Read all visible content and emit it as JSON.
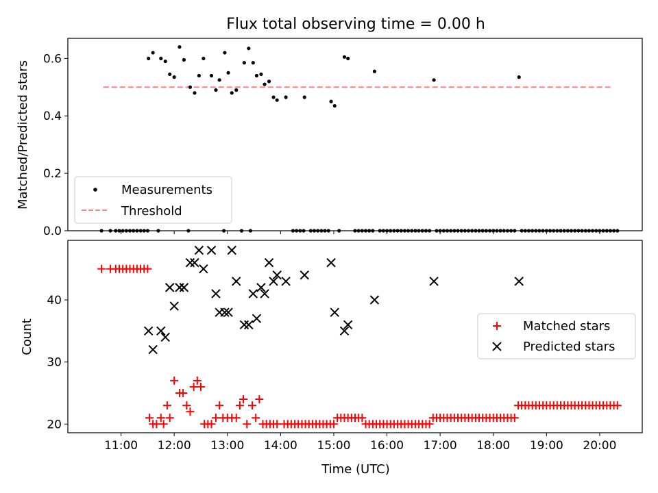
{
  "chart_data": [
    {
      "type": "scatter",
      "title": "Flux total observing time = 0.00 h",
      "xlabel": "",
      "ylabel": "Matched/Predicted stars",
      "ylim": [
        0,
        0.67
      ],
      "yticks": [
        "0.0",
        "0.2",
        "0.4",
        "0.6"
      ],
      "legend": {
        "placement": "lower-left",
        "entries": [
          "Measurements",
          "Threshold"
        ]
      },
      "threshold": {
        "name": "Threshold",
        "value": 0.5,
        "x_start": "10:40",
        "x_end": "20:14",
        "color": "#ff7f7f"
      },
      "series": [
        {
          "name": "Measurements",
          "color": "#000000",
          "x": [
            "11:31",
            "11:36",
            "11:45",
            "11:50",
            "11:55",
            "12:00",
            "12:06",
            "12:11",
            "12:18",
            "12:23",
            "12:28",
            "12:33",
            "12:42",
            "12:47",
            "12:51",
            "12:57",
            "13:01",
            "13:05",
            "13:10",
            "13:19",
            "13:24",
            "13:29",
            "13:33",
            "13:38",
            "13:42",
            "13:47",
            "13:52",
            "13:56",
            "14:06",
            "14:27",
            "14:57",
            "15:01",
            "15:12",
            "15:16",
            "15:46",
            "16:53",
            "18:29"
          ],
          "y": [
            0.6,
            0.62,
            0.6,
            0.59,
            0.545,
            0.535,
            0.64,
            0.595,
            0.5,
            0.48,
            0.54,
            0.6,
            0.54,
            0.49,
            0.525,
            0.62,
            0.55,
            0.48,
            0.49,
            0.585,
            0.635,
            0.585,
            0.54,
            0.545,
            0.51,
            0.52,
            0.465,
            0.455,
            0.465,
            0.465,
            0.45,
            0.435,
            0.605,
            0.6,
            0.555,
            0.525,
            0.535
          ],
          "baseline_x": [
            "10:38",
            "10:48",
            "10:54",
            "10:58",
            "11:02",
            "11:06",
            "11:10",
            "11:14",
            "11:18",
            "11:22",
            "11:26",
            "11:30",
            "11:42",
            "12:16",
            "12:56",
            "13:16",
            "13:26",
            "14:14",
            "14:18",
            "14:22",
            "14:26",
            "14:34",
            "14:38",
            "14:42",
            "14:46",
            "14:50",
            "14:54",
            "15:06",
            "15:24",
            "15:28",
            "15:32",
            "15:36",
            "15:40",
            "15:44",
            "15:52",
            "15:56",
            "16:00",
            "16:04",
            "16:08",
            "16:12",
            "16:16",
            "16:20",
            "16:24",
            "16:28",
            "16:32",
            "16:36",
            "16:40",
            "16:44",
            "16:48",
            "16:56",
            "17:00",
            "17:04",
            "17:08",
            "17:12",
            "17:16",
            "17:20",
            "17:24",
            "17:28",
            "17:32",
            "17:36",
            "17:40",
            "17:44",
            "17:48",
            "17:52",
            "17:56",
            "18:00",
            "18:04",
            "18:08",
            "18:12",
            "18:16",
            "18:20",
            "18:24",
            "18:32",
            "18:36",
            "18:40",
            "18:44",
            "18:48",
            "18:52",
            "18:56",
            "19:00",
            "19:04",
            "19:08",
            "19:12",
            "19:16",
            "19:20",
            "19:24",
            "19:28",
            "19:32",
            "19:36",
            "19:40",
            "19:44",
            "19:48",
            "19:52",
            "19:56",
            "20:00",
            "20:04",
            "20:08",
            "20:12",
            "20:16",
            "20:20"
          ],
          "baseline_y": 0.0
        }
      ]
    },
    {
      "type": "scatter",
      "title": "",
      "xlabel": "Time (UTC)",
      "ylabel": "Count",
      "xlim": [
        "10:00",
        "20:48"
      ],
      "xticks": [
        "11:00",
        "12:00",
        "13:00",
        "14:00",
        "15:00",
        "16:00",
        "17:00",
        "18:00",
        "19:00",
        "20:00"
      ],
      "ylim": [
        18.6,
        49.6
      ],
      "yticks": [
        "20",
        "30",
        "40"
      ],
      "legend": {
        "placement": "center-right",
        "entries": [
          "Matched stars",
          "Predicted stars"
        ]
      },
      "series": [
        {
          "name": "Matched stars",
          "marker": "+",
          "color": "#ff0000",
          "x": [
            "10:38",
            "10:48",
            "10:54",
            "10:58",
            "11:02",
            "11:06",
            "11:10",
            "11:14",
            "11:18",
            "11:22",
            "11:26",
            "11:30",
            "11:32",
            "11:36",
            "11:40",
            "11:45",
            "11:48",
            "11:52",
            "11:55",
            "12:00",
            "12:06",
            "12:10",
            "12:14",
            "12:18",
            "12:22",
            "12:26",
            "12:30",
            "12:34",
            "12:38",
            "12:42",
            "12:47",
            "12:51",
            "12:55",
            "13:00",
            "13:05",
            "13:10",
            "13:14",
            "13:18",
            "13:22",
            "13:28",
            "13:32",
            "13:36",
            "13:40",
            "13:44",
            "13:48",
            "13:52",
            "13:56",
            "14:04",
            "14:08",
            "14:12",
            "14:16",
            "14:20",
            "14:24",
            "14:28",
            "14:32",
            "14:36",
            "14:40",
            "14:44",
            "14:48",
            "14:52",
            "14:56",
            "15:00",
            "15:04",
            "15:08",
            "15:12",
            "15:16",
            "15:20",
            "15:24",
            "15:28",
            "15:32",
            "15:36",
            "15:40",
            "15:44",
            "15:48",
            "15:52",
            "15:56",
            "16:00",
            "16:04",
            "16:08",
            "16:12",
            "16:16",
            "16:20",
            "16:24",
            "16:28",
            "16:32",
            "16:36",
            "16:40",
            "16:44",
            "16:48",
            "16:52",
            "16:56",
            "17:00",
            "17:04",
            "17:08",
            "17:12",
            "17:16",
            "17:20",
            "17:24",
            "17:28",
            "17:32",
            "17:36",
            "17:40",
            "17:44",
            "17:48",
            "17:52",
            "17:56",
            "18:00",
            "18:04",
            "18:08",
            "18:12",
            "18:16",
            "18:20",
            "18:24",
            "18:28",
            "18:32",
            "18:36",
            "18:40",
            "18:44",
            "18:48",
            "18:52",
            "18:56",
            "19:00",
            "19:04",
            "19:08",
            "19:12",
            "19:16",
            "19:20",
            "19:24",
            "19:28",
            "19:32",
            "19:36",
            "19:40",
            "19:44",
            "19:48",
            "19:52",
            "19:56",
            "20:00",
            "20:04",
            "20:08",
            "20:12",
            "20:16",
            "20:20"
          ],
          "y": [
            45,
            45,
            45,
            45,
            45,
            45,
            45,
            45,
            45,
            45,
            45,
            45,
            21,
            20,
            20,
            21,
            20,
            23,
            21,
            27,
            25,
            25,
            23,
            22,
            26,
            27,
            26,
            20,
            20,
            20,
            21,
            23,
            21,
            21,
            21,
            21,
            23,
            24,
            20,
            23,
            21,
            24,
            20,
            20,
            20,
            20,
            20,
            20,
            20,
            20,
            20,
            20,
            20,
            20,
            20,
            20,
            20,
            20,
            20,
            20,
            20,
            20,
            21,
            21,
            21,
            21,
            21,
            21,
            21,
            21,
            20,
            20,
            20,
            20,
            20,
            20,
            20,
            20,
            20,
            20,
            20,
            20,
            20,
            20,
            20,
            20,
            20,
            20,
            20,
            21,
            21,
            21,
            21,
            21,
            21,
            21,
            21,
            21,
            21,
            21,
            21,
            21,
            21,
            21,
            21,
            21,
            21,
            21,
            21,
            21,
            21,
            21,
            21,
            23,
            23,
            23,
            23,
            23,
            23,
            23,
            23,
            23,
            23,
            23,
            23,
            23,
            23,
            23,
            23,
            23,
            23,
            23,
            23,
            23,
            23,
            23,
            23,
            23,
            23,
            23,
            23,
            23
          ]
        },
        {
          "name": "Predicted stars",
          "marker": "x",
          "color": "#000000",
          "x": [
            "11:31",
            "11:36",
            "11:45",
            "11:50",
            "11:55",
            "12:00",
            "12:06",
            "12:11",
            "12:18",
            "12:23",
            "12:28",
            "12:33",
            "12:42",
            "12:47",
            "12:51",
            "12:57",
            "13:01",
            "13:05",
            "13:10",
            "13:19",
            "13:24",
            "13:29",
            "13:33",
            "13:38",
            "13:42",
            "13:47",
            "13:52",
            "13:56",
            "14:06",
            "14:27",
            "14:57",
            "15:01",
            "15:12",
            "15:16",
            "15:46",
            "16:53",
            "18:29"
          ],
          "y": [
            35,
            32,
            35,
            34,
            42,
            39,
            42,
            42,
            46,
            46,
            48,
            45,
            48,
            41,
            38,
            38,
            38,
            48,
            43,
            36,
            36,
            41,
            37,
            42,
            41,
            46,
            43,
            44,
            43,
            44,
            46,
            38,
            35,
            36,
            40,
            43,
            43
          ]
        }
      ]
    }
  ]
}
